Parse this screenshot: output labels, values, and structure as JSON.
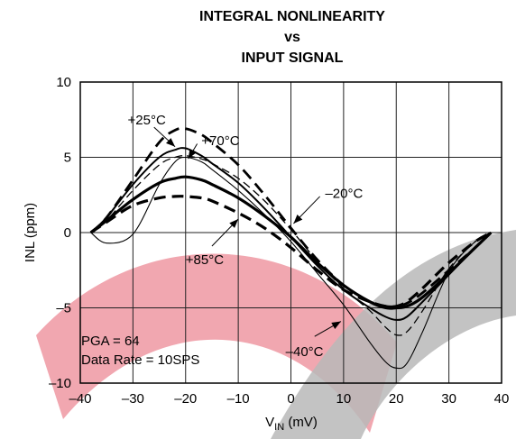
{
  "chart_data": {
    "type": "line",
    "title": [
      "INTEGRAL NONLINEARITY",
      "vs",
      "INPUT SIGNAL"
    ],
    "xlabel": {
      "main": "V",
      "sub": "IN",
      "unit": " (mV)"
    },
    "ylabel": "INL (ppm)",
    "xlim": [
      -40,
      40
    ],
    "ylim": [
      -10,
      10
    ],
    "xticks": [
      -40,
      -30,
      -20,
      -10,
      0,
      10,
      20,
      30,
      40
    ],
    "xtick_labels": [
      "–40",
      "–30",
      "–20",
      "–10",
      "0",
      "10",
      "20",
      "30",
      "40"
    ],
    "yticks": [
      10,
      5,
      0,
      -5,
      -10
    ],
    "ytick_labels": [
      "10",
      "5",
      "0",
      "–5",
      "–10"
    ],
    "grid": true,
    "x": [
      -38,
      -35,
      -30,
      -25,
      -22,
      -20,
      -17,
      -15,
      -10,
      -5,
      0,
      5,
      10,
      15,
      18,
      20,
      22,
      25,
      30,
      35,
      38
    ],
    "series": [
      {
        "name": "+25°C",
        "color": "#000000",
        "dash": "dashed",
        "width": 2.8,
        "values": [
          0,
          1.0,
          3.5,
          6.0,
          6.8,
          6.9,
          6.5,
          6.0,
          4.5,
          2.5,
          0.3,
          -1.8,
          -3.5,
          -4.6,
          -4.9,
          -4.9,
          -4.7,
          -4.0,
          -2.5,
          -1.0,
          0
        ]
      },
      {
        "name": "+70°C",
        "color": "#000000",
        "dash": "solid",
        "width": 2.0,
        "values": [
          0,
          1.0,
          3.2,
          5.0,
          5.5,
          5.6,
          5.1,
          4.6,
          3.3,
          1.6,
          -0.3,
          -2.2,
          -3.8,
          -5.0,
          -5.6,
          -5.8,
          -5.6,
          -4.6,
          -2.8,
          -1.0,
          0
        ]
      },
      {
        "name": "–20°C",
        "color": "#000000",
        "dash": "dashed",
        "width": 1.3,
        "values": [
          0,
          0.8,
          2.8,
          4.5,
          5.0,
          5.1,
          4.9,
          4.6,
          3.6,
          2.1,
          0.2,
          -1.9,
          -3.7,
          -5.2,
          -6.3,
          -6.8,
          -6.6,
          -5.2,
          -2.4,
          -0.6,
          0
        ]
      },
      {
        "name": "+85°C",
        "color": "#000000",
        "dash": "solid",
        "width": 3.2,
        "values": [
          0,
          0.8,
          2.2,
          3.3,
          3.6,
          3.7,
          3.5,
          3.2,
          2.3,
          1.1,
          -0.3,
          -2.0,
          -3.5,
          -4.6,
          -5.0,
          -5.0,
          -4.9,
          -4.3,
          -2.7,
          -1.0,
          0
        ]
      },
      {
        "name": "",
        "color": "#000000",
        "dash": "dashed",
        "width": 3.2,
        "values": [
          0,
          0.7,
          1.8,
          2.3,
          2.4,
          2.4,
          2.3,
          2.1,
          1.3,
          0.3,
          -1.0,
          -2.5,
          -3.8,
          -4.6,
          -4.9,
          -4.9,
          -4.6,
          -3.7,
          -2.0,
          -0.6,
          0
        ]
      },
      {
        "name": "–40°C",
        "color": "#000000",
        "dash": "solid",
        "width": 1.1,
        "values": [
          0,
          -0.7,
          -0.1,
          3.2,
          4.7,
          5.0,
          4.7,
          4.2,
          2.8,
          1.2,
          -0.6,
          -2.7,
          -4.8,
          -7.3,
          -8.6,
          -9.0,
          -8.7,
          -6.6,
          -2.6,
          -0.6,
          0
        ]
      }
    ],
    "annotations": [
      {
        "name": "anno-25c",
        "text": "+25°C",
        "label_at": [
          -31,
          7.5
        ],
        "arrow_from": [
          -26,
          7.0
        ],
        "arrow_to": [
          -22,
          5.7
        ]
      },
      {
        "name": "anno-70c",
        "text": "+70°C",
        "label_at": [
          -17,
          6.1
        ],
        "arrow_from": [
          -17.8,
          5.9
        ],
        "arrow_to": [
          -19.5,
          4.9
        ]
      },
      {
        "name": "anno-m20c",
        "text": "–20°C",
        "label_at": [
          6.5,
          2.6
        ],
        "arrow_from": [
          5.5,
          2.4
        ],
        "arrow_to": [
          0.5,
          0.6
        ]
      },
      {
        "name": "anno-85c",
        "text": "+85°C",
        "label_at": [
          -20,
          -1.8
        ],
        "arrow_from": [
          -15,
          -0.9
        ],
        "arrow_to": [
          -10,
          0.9
        ]
      },
      {
        "name": "anno-m40c",
        "text": "–40°C",
        "label_at": [
          -1,
          -7.9
        ],
        "arrow_from": [
          4.5,
          -6.9
        ],
        "arrow_to": [
          9.5,
          -5.9
        ]
      }
    ],
    "notes": [
      "PGA = 64",
      "Data Rate = 10SPS"
    ]
  },
  "watermark_colors": {
    "pink": "#ec8a96",
    "gray": "#b8b8b8"
  }
}
